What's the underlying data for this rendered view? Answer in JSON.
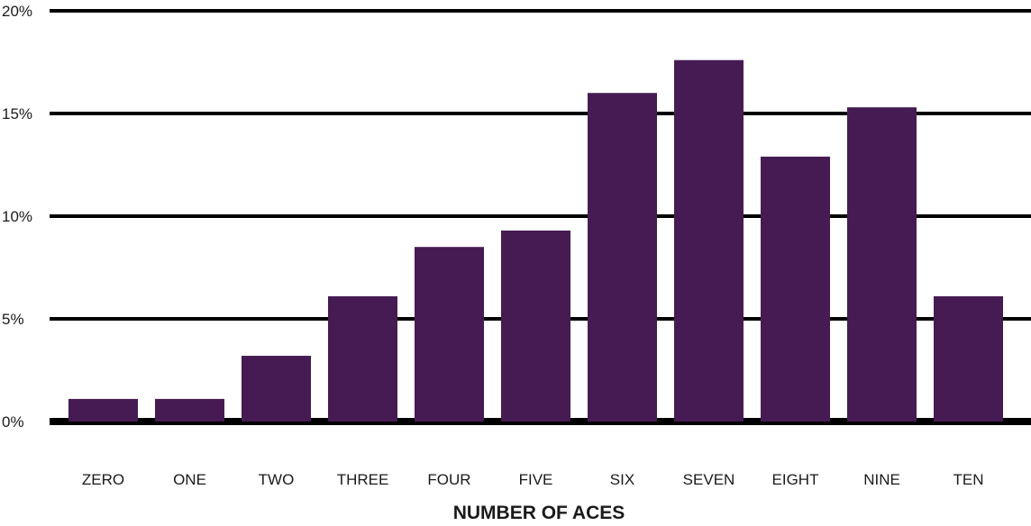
{
  "chart_data": {
    "type": "bar",
    "title": "",
    "xlabel": "NUMBER OF ACES",
    "ylabel": "",
    "categories": [
      "ZERO",
      "ONE",
      "TWO",
      "THREE",
      "FOUR",
      "FIVE",
      "SIX",
      "SEVEN",
      "EIGHT",
      "NINE",
      "TEN"
    ],
    "values": [
      1.1,
      1.1,
      3.2,
      6.1,
      8.5,
      9.3,
      16.0,
      17.6,
      12.9,
      15.3,
      6.1
    ],
    "ylim": [
      0,
      20
    ],
    "yticks": [
      0,
      5,
      10,
      15,
      20
    ],
    "ytick_labels": [
      "0%",
      "5%",
      "10%",
      "15%",
      "20%"
    ],
    "grid": true,
    "legend": "none",
    "colors": {
      "bar": "#461B53",
      "grid": "#000000",
      "text": "#1a1a1a"
    }
  }
}
